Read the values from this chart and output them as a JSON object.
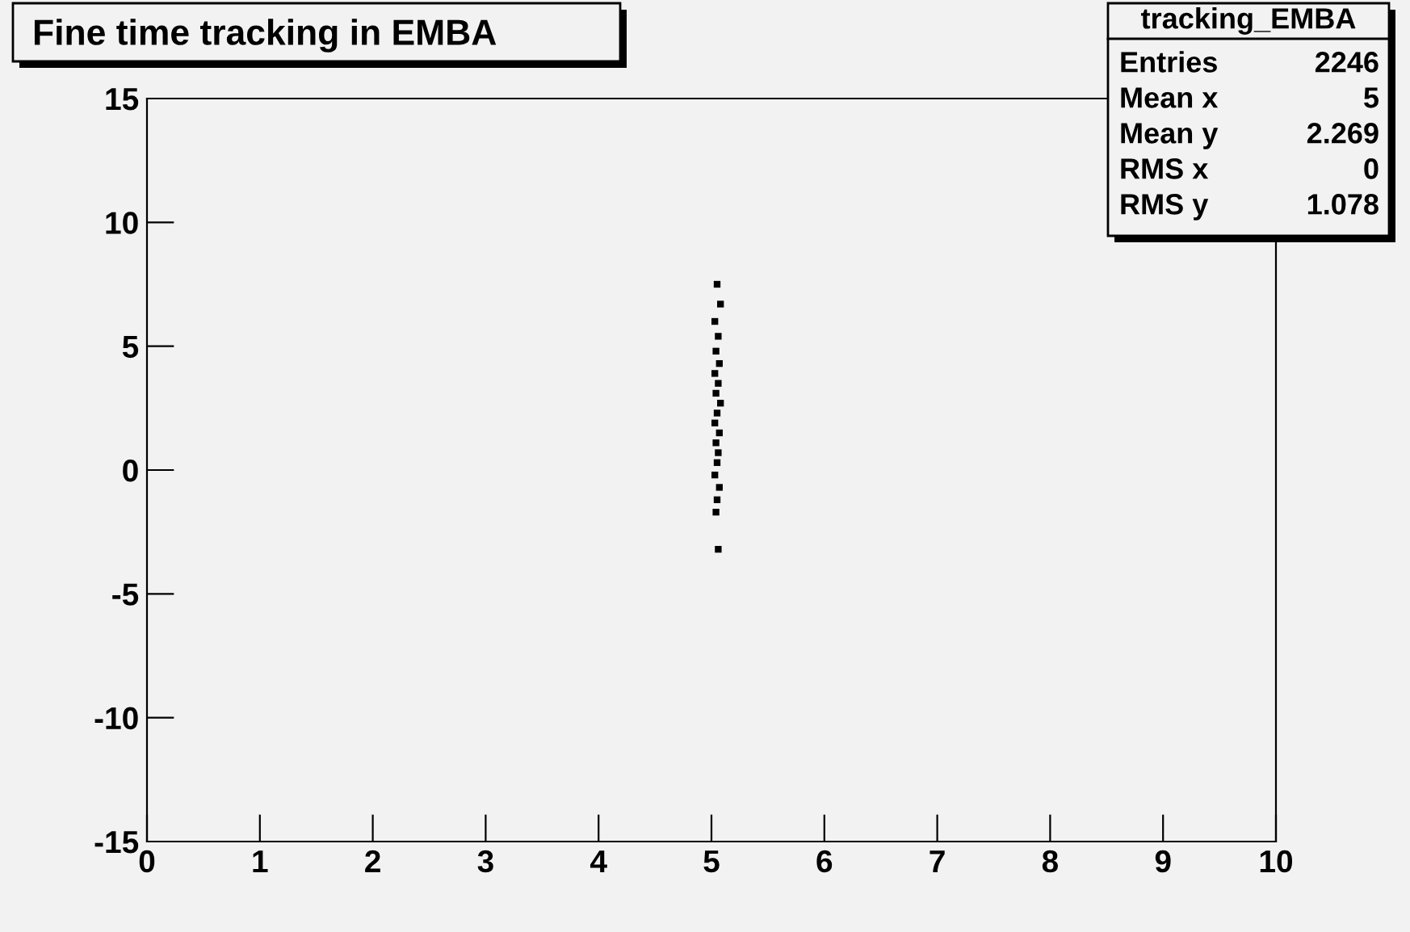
{
  "chart_data": {
    "type": "scatter",
    "title": "Fine time tracking in EMBA",
    "x": [
      5.05,
      5.08,
      5.03,
      5.06,
      5.04,
      5.07,
      5.03,
      5.06,
      5.04,
      5.08,
      5.05,
      5.03,
      5.07,
      5.04,
      5.06,
      5.05,
      5.03,
      5.07,
      5.05,
      5.04,
      5.06
    ],
    "values": [
      7.5,
      6.7,
      6.0,
      5.4,
      4.8,
      4.3,
      3.9,
      3.5,
      3.1,
      2.7,
      2.3,
      1.9,
      1.5,
      1.1,
      0.7,
      0.3,
      -0.2,
      -0.7,
      -1.2,
      -1.7,
      -3.2
    ],
    "color": "#000000",
    "xlim": [
      0,
      10
    ],
    "xticks": [
      0,
      1,
      2,
      3,
      4,
      5,
      6,
      7,
      8,
      9,
      10
    ],
    "ylim": [
      -15,
      15
    ],
    "yticks": [
      -15,
      -10,
      -5,
      0,
      5,
      10,
      15
    ],
    "grid": false,
    "annotations": [
      "tracking_EMBA",
      "Entries",
      "2246",
      "Mean x",
      "5",
      "Mean y",
      "2.269",
      "RMS x",
      "0",
      "RMS y",
      "1.078"
    ]
  }
}
